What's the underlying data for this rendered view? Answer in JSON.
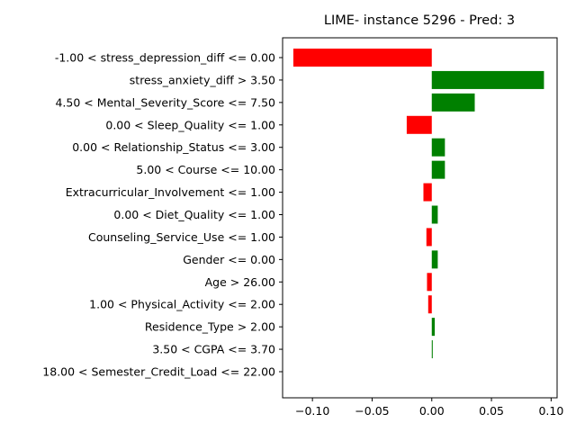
{
  "chart_data": {
    "type": "bar",
    "orientation": "horizontal",
    "title": "LIME- instance 5296 - Pred: 3",
    "xlabel": "",
    "ylabel": "",
    "xlim": [
      -0.125,
      0.105
    ],
    "xticks": [
      "−0.10",
      "−0.05",
      "0.00",
      "0.05",
      "0.10"
    ],
    "xtick_values": [
      -0.1,
      -0.05,
      0.0,
      0.05,
      0.1
    ],
    "grid": false,
    "colors": {
      "positive": "#008000",
      "negative": "#ff0000"
    },
    "categories": [
      "-1.00 < stress_depression_diff <= 0.00",
      "stress_anxiety_diff > 3.50",
      "4.50 < Mental_Severity_Score <= 7.50",
      "0.00 < Sleep_Quality <= 1.00",
      "0.00 < Relationship_Status <= 3.00",
      "5.00 < Course <= 10.00",
      "Extracurricular_Involvement <= 1.00",
      "0.00 < Diet_Quality <= 1.00",
      "Counseling_Service_Use <= 1.00",
      "Gender <= 0.00",
      "Age > 26.00",
      "1.00 < Physical_Activity <= 2.00",
      "Residence_Type > 2.00",
      "3.50 < CGPA <= 3.70",
      "18.00 < Semester_Credit_Load <= 22.00"
    ],
    "values": [
      -0.116,
      0.094,
      0.036,
      -0.021,
      0.011,
      0.011,
      -0.007,
      0.005,
      -0.0045,
      0.005,
      -0.004,
      -0.003,
      0.0025,
      0.0008,
      0.0
    ]
  }
}
